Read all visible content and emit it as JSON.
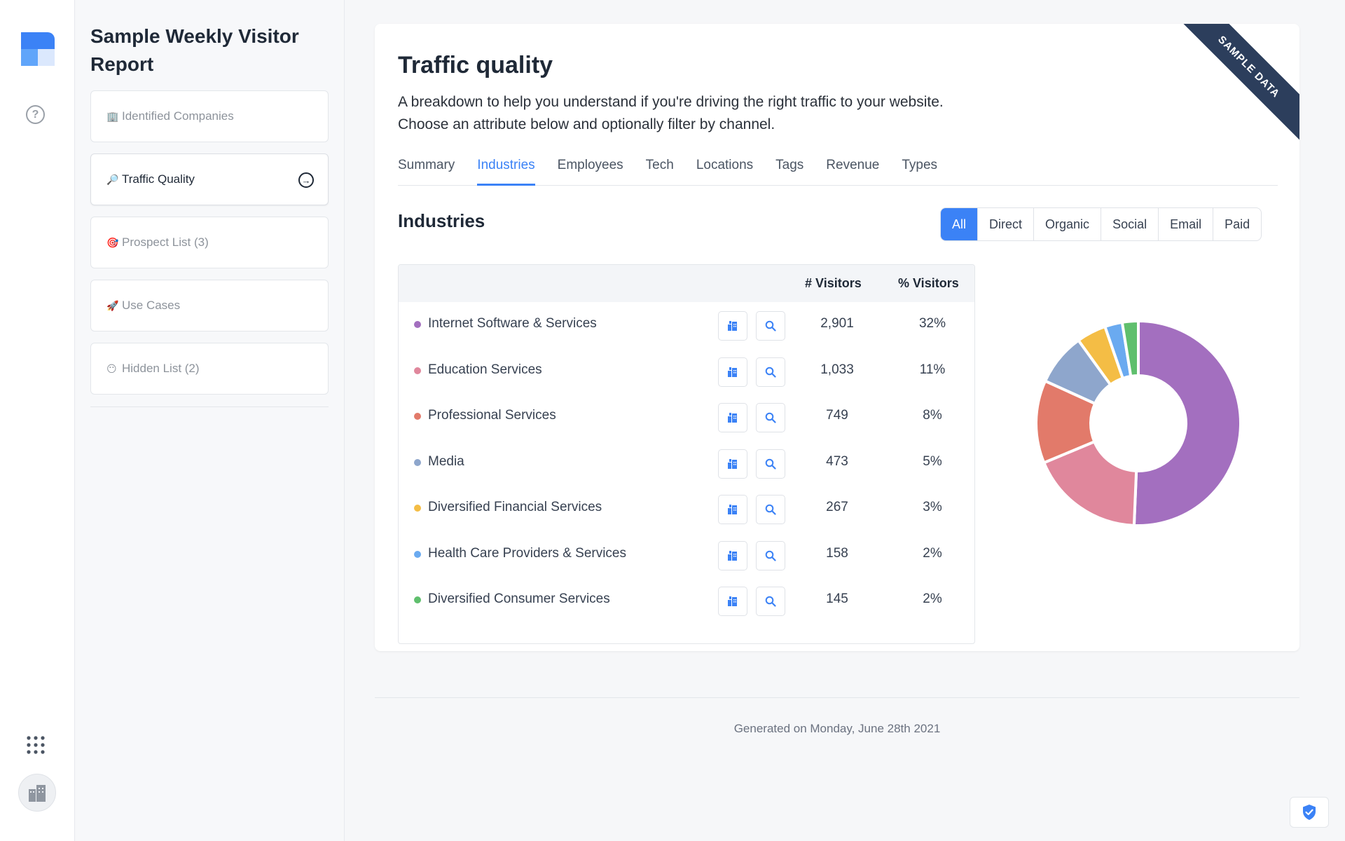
{
  "sidebar": {
    "title": "Sample Weekly Visitor Report",
    "items": [
      {
        "emoji": "🏢",
        "label": "Identified Companies"
      },
      {
        "emoji": "🔎",
        "label": "Traffic Quality"
      },
      {
        "emoji": "🎯",
        "label": "Prospect List (3)"
      },
      {
        "emoji": "🚀",
        "label": "Use Cases"
      },
      {
        "emoji": "😶",
        "label": "Hidden List (2)"
      }
    ]
  },
  "ribbon": "SAMPLE DATA",
  "main": {
    "title": "Traffic quality",
    "description_line1": "A breakdown to help you understand if you're driving the right traffic to your website.",
    "description_line2": "Choose an attribute below and optionally filter by channel.",
    "tabs": [
      "Summary",
      "Industries",
      "Employees",
      "Tech",
      "Locations",
      "Tags",
      "Revenue",
      "Types"
    ],
    "active_tab": "Industries",
    "section_title": "Industries",
    "filters": [
      "All",
      "Direct",
      "Organic",
      "Social",
      "Email",
      "Paid"
    ],
    "active_filter": "All",
    "table": {
      "headers": {
        "visitors": "# Visitors",
        "pct": "% Visitors"
      },
      "rows": [
        {
          "name": "Internet Software & Services",
          "visitors": "2,901",
          "pct": "32%",
          "color": "#a36fbf"
        },
        {
          "name": "Education Services",
          "visitors": "1,033",
          "pct": "11%",
          "color": "#e0879c"
        },
        {
          "name": "Professional Services",
          "visitors": "749",
          "pct": "8%",
          "color": "#e27a6a"
        },
        {
          "name": "Media",
          "visitors": "473",
          "pct": "5%",
          "color": "#8ea6cc"
        },
        {
          "name": "Diversified Financial Services",
          "visitors": "267",
          "pct": "3%",
          "color": "#f4bd45"
        },
        {
          "name": "Health Care Providers & Services",
          "visitors": "158",
          "pct": "2%",
          "color": "#6aaaf0"
        },
        {
          "name": "Diversified Consumer Services",
          "visitors": "145",
          "pct": "2%",
          "color": "#5fbf6d"
        }
      ]
    }
  },
  "footer": "Generated on Monday, June 28th 2021",
  "colors": {
    "accent": "#3b82f6",
    "ribbon": "#2c3e5c"
  },
  "icons": {
    "rail": [
      "logo-icon",
      "help-icon",
      "apps-grid-icon",
      "company-avatar-icon"
    ],
    "row_buttons": [
      "companies-icon",
      "search-icon"
    ],
    "footer": "shield-icon"
  }
}
